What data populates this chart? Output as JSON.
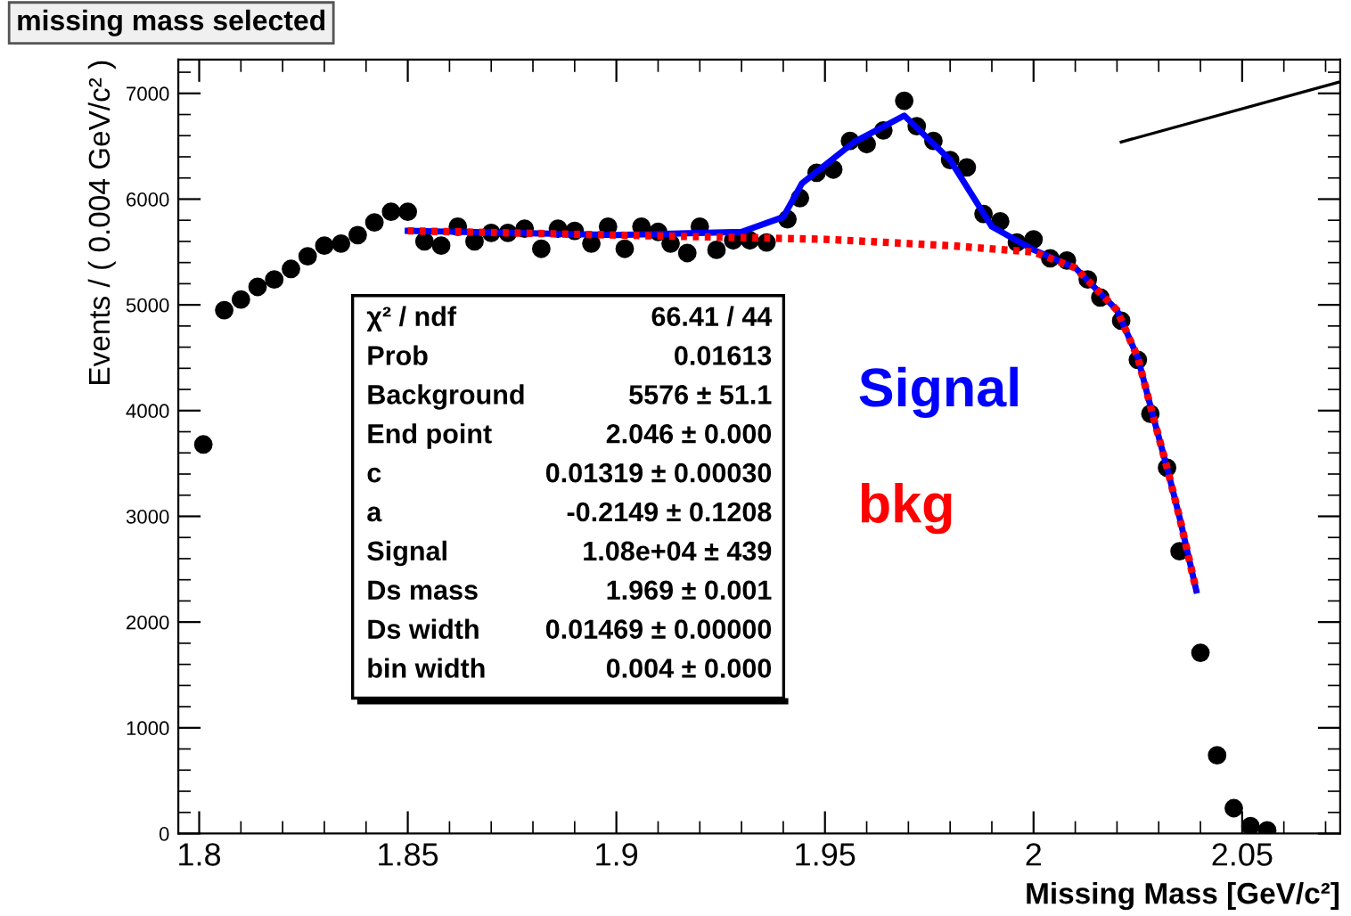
{
  "chart_data": {
    "type": "scatter",
    "title": "missing mass selected",
    "xlabel": "Missing Mass [GeV/c²]",
    "ylabel": "Events / ( 0.004 GeV/c² )",
    "xlim": [
      1.795,
      2.0735
    ],
    "ylim": [
      0,
      7320
    ],
    "xticks": [
      1.8,
      1.85,
      1.9,
      1.95,
      2,
      2.05
    ],
    "yticks": [
      0,
      1000,
      2000,
      3000,
      4000,
      5000,
      6000,
      7000
    ],
    "grid": false,
    "series": [
      {
        "color": "#000000",
        "marker": "circle",
        "x": [
          1.801,
          1.806,
          1.81,
          1.814,
          1.818,
          1.822,
          1.826,
          1.83,
          1.834,
          1.838,
          1.842,
          1.846,
          1.85,
          1.854,
          1.858,
          1.862,
          1.866,
          1.87,
          1.874,
          1.878,
          1.882,
          1.886,
          1.89,
          1.894,
          1.898,
          1.902,
          1.906,
          1.91,
          1.913,
          1.917,
          1.92,
          1.924,
          1.928,
          1.932,
          1.936,
          1.941,
          1.944,
          1.948,
          1.952,
          1.956,
          1.96,
          1.964,
          1.969,
          1.972,
          1.976,
          1.98,
          1.984,
          1.988,
          1.992,
          1.996,
          2.0,
          2.004,
          2.008,
          2.013,
          2.016,
          2.021,
          2.025,
          2.028,
          2.032,
          2.035,
          2.04,
          2.044,
          2.048,
          2.052,
          2.056
        ],
        "values": [
          3680,
          4950,
          5050,
          5170,
          5240,
          5340,
          5460,
          5560,
          5580,
          5660,
          5780,
          5880,
          5880,
          5600,
          5560,
          5740,
          5600,
          5680,
          5680,
          5720,
          5530,
          5720,
          5700,
          5580,
          5740,
          5530,
          5740,
          5690,
          5580,
          5490,
          5740,
          5520,
          5610,
          5610,
          5590,
          5810,
          6010,
          6250,
          6280,
          6550,
          6520,
          6650,
          6930,
          6690,
          6550,
          6370,
          6300,
          5860,
          5790,
          5590,
          5620,
          5440,
          5420,
          5240,
          5070,
          4850,
          4480,
          3970,
          3460,
          2670,
          1710,
          740,
          240,
          70,
          30
        ]
      },
      {
        "type": "line",
        "name": "Signal",
        "color": "#0000ff",
        "line_style": "solid",
        "x": [
          1.85,
          1.9,
          1.93,
          1.94,
          1.9445,
          1.957,
          1.969,
          1.98,
          1.99,
          2.0,
          2.01,
          2.02,
          2.025,
          2.0285,
          2.032,
          2.035,
          2.039
        ],
        "values": [
          5700,
          5660,
          5690,
          5830,
          6150,
          6540,
          6790,
          6370,
          5740,
          5520,
          5350,
          4950,
          4500,
          3970,
          3460,
          2990,
          2300
        ]
      },
      {
        "type": "line",
        "name": "bkg",
        "color": "#ff0000",
        "line_style": "dotted",
        "x": [
          1.85,
          1.9,
          1.95,
          1.98,
          2.0,
          2.01,
          2.02,
          2.025,
          2.0285,
          2.032,
          2.035,
          2.039
        ],
        "values": [
          5700,
          5660,
          5620,
          5560,
          5500,
          5350,
          4950,
          4500,
          3970,
          3460,
          2990,
          2300
        ]
      },
      {
        "type": "line",
        "color": "#000000",
        "line_style": "solid",
        "x": [
          2.021,
          2.0735
        ],
        "values": [
          6540,
          7110
        ]
      }
    ],
    "annotations": [
      "χ² / ndf",
      "66.41 / 44",
      "Prob",
      "0.01613",
      "Background",
      "5576 ± 51.1",
      "End point",
      "2.046 ± 0.000",
      "c",
      "0.01319 ± 0.00030",
      "a",
      "-0.2149 ± 0.1208",
      "Signal",
      "1.08e+04 ± 439",
      "Ds mass",
      "1.969 ± 0.001",
      "Ds width",
      "0.01469 ± 0.00000",
      "bin width",
      "0.004 ± 0.000"
    ]
  }
}
